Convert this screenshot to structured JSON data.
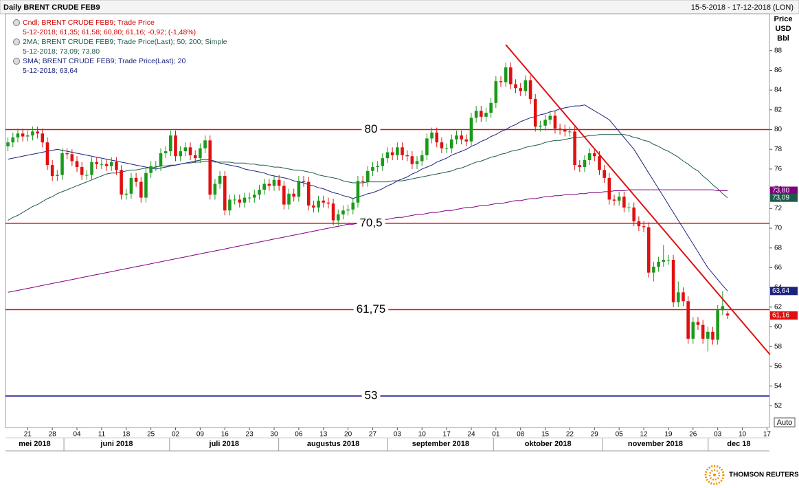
{
  "header": {
    "title": "Daily BRENT CRUDE FEB9",
    "range": "15-5-2018 - 17-12-2018 (LON)"
  },
  "footer": {
    "brand": "THOMSON REUTERS"
  },
  "controls": {
    "auto": "Auto"
  },
  "chart_data": {
    "type": "candlestick",
    "ylabel_lines": [
      "Price",
      "USD",
      "Bbl"
    ],
    "ylim": [
      49.8,
      91.6
    ],
    "yticks": [
      52,
      54,
      56,
      58,
      60,
      62,
      64,
      66,
      68,
      70,
      72,
      74,
      76,
      78,
      80,
      82,
      84,
      86,
      88
    ],
    "up_color": "#1a9a1a",
    "down_color": "#e01010",
    "legend": [
      {
        "title": "Cndl; BRENT CRUDE FEB9; Trade Price",
        "detail": "5-12-2018; 61,35; 61,58; 60,80; 61,16; -0,92; (-1,48%)",
        "color": "#d00000"
      },
      {
        "title": "2MA; BRENT CRUDE FEB9; Trade Price(Last);  50; 200; Simple",
        "detail": "5-12-2018; 73,09; 73,80",
        "color": "#1d5a4a"
      },
      {
        "title": "SMA; BRENT CRUDE FEB9; Trade Price(Last);  20",
        "detail": "5-12-2018; 63,64",
        "color": "#1a237e"
      }
    ],
    "months": [
      "mei 2018",
      "juni 2018",
      "juli 2018",
      "augustus 2018",
      "september 2018",
      "oktober 2018",
      "november 2018",
      "dec 18"
    ],
    "categories": [
      null,
      null,
      null,
      null,
      "21",
      null,
      null,
      null,
      null,
      "28",
      null,
      null,
      null,
      null,
      "04",
      null,
      null,
      null,
      null,
      "11",
      null,
      null,
      null,
      null,
      "18",
      null,
      null,
      null,
      null,
      "25",
      null,
      null,
      null,
      null,
      "02",
      null,
      null,
      null,
      null,
      "09",
      null,
      null,
      null,
      null,
      "16",
      null,
      null,
      null,
      null,
      "23",
      null,
      null,
      null,
      null,
      "30",
      null,
      null,
      null,
      null,
      "06",
      null,
      null,
      null,
      null,
      "13",
      null,
      null,
      null,
      null,
      "20",
      null,
      null,
      null,
      null,
      "27",
      null,
      null,
      null,
      null,
      "03",
      null,
      null,
      null,
      null,
      "10",
      null,
      null,
      null,
      null,
      "17",
      null,
      null,
      null,
      null,
      "24",
      null,
      null,
      null,
      null,
      "01",
      null,
      null,
      null,
      null,
      "08",
      null,
      null,
      null,
      null,
      "15",
      null,
      null,
      null,
      null,
      "22",
      null,
      null,
      null,
      null,
      "29",
      null,
      null,
      null,
      null,
      "05",
      null,
      null,
      null,
      null,
      "12",
      null,
      null,
      null,
      null,
      "19",
      null,
      null,
      null,
      null,
      "26",
      null,
      null,
      null,
      null,
      "03",
      null,
      null,
      null,
      null,
      "10",
      null,
      null,
      null,
      null,
      "17"
    ],
    "open": [
      78.3,
      78.7,
      79.2,
      79.6,
      79.3,
      79.4,
      79.8,
      79.6,
      78.7,
      76.4,
      75.3,
      75.4,
      77.6,
      77.5,
      76.8,
      76.2,
      75.4,
      75.4,
      76.7,
      76.5,
      76.5,
      76.3,
      76.7,
      75.9,
      73.4,
      73.5,
      75.1,
      74.7,
      73.1,
      75.6,
      76.3,
      76.3,
      77.6,
      77.8,
      79.4,
      77.3,
      77.8,
      78.2,
      77.4,
      77.1,
      78.1,
      78.9,
      73.4,
      74.5,
      75.3,
      71.8,
      72.9,
      72.9,
      72.6,
      73.1,
      73.1,
      73.4,
      73.9,
      74.5,
      74.3,
      74.9,
      74.3,
      72.4,
      73.5,
      73.2,
      74.8,
      74.7,
      72.3,
      72.1,
      72.8,
      72.6,
      72.5,
      70.8,
      71.4,
      71.8,
      71.9,
      72.6,
      74.8,
      74.7,
      75.8,
      76.2,
      76.3,
      77.1,
      77.7,
      77.4,
      78.2,
      77.4,
      77.3,
      76.5,
      76.8,
      77.4,
      79.1,
      79.7,
      78.7,
      78.1,
      78.1,
      79.0,
      79.4,
      79.0,
      78.8,
      81.2,
      81.9,
      81.3,
      81.7,
      82.7,
      84.9,
      84.8,
      86.3,
      84.6,
      84.2,
      83.9,
      85.0,
      83.1,
      80.3,
      80.4,
      81.0,
      81.4,
      80.1,
      80.0,
      79.8,
      79.8,
      76.4,
      76.2,
      76.9,
      77.6,
      77.3,
      75.9,
      75.1,
      72.9,
      72.8,
      73.2,
      72.1,
      72.1,
      70.7,
      70.2,
      70.1,
      65.5,
      66.1,
      66.6,
      66.8,
      66.8,
      62.5,
      63.5,
      62.6,
      58.8,
      60.5,
      60.2,
      58.8,
      59.5,
      58.7,
      61.7,
      61.35,
      null,
      null,
      null,
      null,
      null,
      null,
      null,
      null
    ],
    "high": [
      79.2,
      79.7,
      80.1,
      80.1,
      79.9,
      80.3,
      80.3,
      80.1,
      79.2,
      76.9,
      75.9,
      78.1,
      78.1,
      78.0,
      77.3,
      76.7,
      75.9,
      77.2,
      77.2,
      77.0,
      77.0,
      77.2,
      77.2,
      76.4,
      74.0,
      75.6,
      75.6,
      75.2,
      76.1,
      76.8,
      76.8,
      78.1,
      78.3,
      79.9,
      79.9,
      78.3,
      78.7,
      78.7,
      77.9,
      78.6,
      79.4,
      79.4,
      75.0,
      75.8,
      75.8,
      73.4,
      73.4,
      73.4,
      73.6,
      73.6,
      73.9,
      74.4,
      75.0,
      75.0,
      75.4,
      75.4,
      74.8,
      74.0,
      74.0,
      75.3,
      75.3,
      75.2,
      72.8,
      73.3,
      73.3,
      73.1,
      73.0,
      71.9,
      72.3,
      72.4,
      73.1,
      75.3,
      75.3,
      76.3,
      76.7,
      76.8,
      77.6,
      78.2,
      78.2,
      78.7,
      78.7,
      77.9,
      77.8,
      77.3,
      77.9,
      79.6,
      80.2,
      80.2,
      79.2,
      78.6,
      79.5,
      79.9,
      79.9,
      79.5,
      81.7,
      82.4,
      82.4,
      82.2,
      83.2,
      85.4,
      85.4,
      86.8,
      86.8,
      85.1,
      84.7,
      85.5,
      85.5,
      83.6,
      80.9,
      81.5,
      81.9,
      81.9,
      80.6,
      80.5,
      80.3,
      80.3,
      76.9,
      77.4,
      78.1,
      78.1,
      77.8,
      76.4,
      75.6,
      73.4,
      73.7,
      73.7,
      72.6,
      72.6,
      71.2,
      70.7,
      70.6,
      66.6,
      67.1,
      68.3,
      67.3,
      67.3,
      64.6,
      64.0,
      63.1,
      61.0,
      61.0,
      60.7,
      60.0,
      60.0,
      62.2,
      63.6,
      61.58,
      null,
      null,
      null,
      null,
      null,
      null,
      null,
      null
    ],
    "low": [
      77.8,
      78.2,
      78.7,
      78.8,
      78.8,
      78.9,
      79.1,
      78.2,
      75.9,
      74.8,
      74.8,
      74.9,
      77.0,
      76.3,
      75.7,
      74.9,
      74.9,
      74.9,
      76.0,
      76.0,
      75.8,
      75.8,
      75.4,
      72.9,
      72.9,
      73.0,
      74.2,
      72.6,
      72.6,
      75.1,
      75.8,
      75.8,
      77.1,
      77.3,
      76.8,
      76.8,
      77.3,
      76.9,
      76.6,
      76.6,
      77.6,
      72.9,
      72.9,
      74.0,
      71.3,
      71.3,
      72.4,
      72.1,
      72.1,
      72.6,
      72.6,
      72.9,
      73.4,
      73.8,
      73.8,
      73.8,
      71.9,
      71.9,
      72.7,
      72.7,
      74.2,
      71.8,
      71.6,
      71.6,
      72.1,
      72.0,
      70.3,
      70.3,
      70.9,
      71.3,
      71.4,
      72.1,
      74.2,
      74.2,
      75.3,
      75.7,
      75.8,
      76.6,
      76.9,
      76.9,
      76.9,
      76.8,
      76.0,
      76.0,
      76.3,
      76.9,
      78.6,
      78.2,
      77.6,
      77.6,
      77.6,
      78.5,
      78.5,
      78.3,
      78.3,
      80.7,
      80.8,
      80.8,
      81.2,
      82.2,
      84.3,
      84.3,
      84.1,
      83.7,
      83.4,
      83.4,
      82.6,
      79.8,
      79.8,
      79.9,
      80.5,
      79.6,
      79.5,
      79.3,
      79.3,
      75.9,
      75.7,
      75.7,
      76.4,
      76.8,
      75.4,
      74.6,
      72.4,
      72.3,
      72.3,
      71.6,
      71.6,
      70.2,
      69.7,
      69.6,
      65.0,
      64.6,
      65.6,
      66.1,
      66.3,
      62.0,
      62.0,
      62.1,
      58.3,
      58.3,
      59.7,
      58.3,
      57.5,
      58.2,
      58.2,
      61.2,
      60.8,
      null,
      null,
      null,
      null,
      null,
      null,
      null,
      null
    ],
    "close": [
      78.7,
      79.2,
      79.6,
      79.3,
      79.4,
      79.8,
      79.6,
      78.7,
      76.4,
      75.3,
      75.4,
      77.6,
      77.5,
      76.8,
      76.2,
      75.4,
      75.4,
      76.7,
      76.5,
      76.5,
      76.3,
      76.7,
      75.9,
      73.4,
      73.5,
      75.1,
      74.7,
      73.1,
      75.6,
      76.3,
      76.3,
      77.6,
      77.8,
      79.4,
      77.3,
      77.8,
      78.2,
      77.4,
      77.1,
      78.1,
      78.9,
      73.4,
      74.5,
      75.3,
      71.8,
      72.9,
      72.9,
      72.6,
      73.1,
      73.1,
      73.4,
      73.9,
      74.5,
      74.3,
      74.9,
      74.3,
      72.4,
      73.5,
      73.2,
      74.8,
      74.7,
      72.3,
      72.1,
      72.8,
      72.6,
      72.5,
      70.8,
      71.4,
      71.8,
      71.9,
      72.6,
      74.8,
      74.7,
      75.8,
      76.2,
      76.3,
      77.1,
      77.7,
      77.4,
      78.2,
      77.4,
      77.3,
      76.5,
      76.8,
      77.4,
      79.1,
      79.7,
      78.7,
      78.1,
      78.1,
      79.0,
      79.4,
      79.0,
      78.8,
      81.2,
      81.9,
      81.3,
      81.7,
      82.7,
      84.9,
      84.8,
      86.3,
      84.6,
      84.2,
      83.9,
      85.0,
      83.1,
      80.3,
      80.4,
      81.0,
      81.4,
      80.1,
      80.0,
      79.8,
      79.8,
      76.4,
      76.2,
      76.9,
      77.6,
      77.3,
      75.9,
      75.1,
      72.9,
      72.8,
      73.2,
      72.1,
      72.1,
      70.7,
      70.2,
      70.1,
      65.5,
      66.1,
      66.6,
      66.8,
      66.8,
      62.5,
      63.5,
      62.6,
      58.8,
      60.5,
      60.2,
      58.8,
      59.5,
      58.7,
      61.7,
      62.1,
      61.16,
      null,
      null,
      null,
      null,
      null,
      null,
      null,
      null
    ],
    "last_label": "61,16",
    "series": [
      {
        "color": "#800080",
        "last_label": "73,80",
        "values": [
          63.5,
          63.6,
          63.7,
          63.8,
          63.9,
          64.0,
          64.1,
          64.2,
          64.3,
          64.4,
          64.5,
          64.6,
          64.7,
          64.8,
          64.9,
          65.0,
          65.1,
          65.2,
          65.3,
          65.4,
          65.5,
          65.6,
          65.7,
          65.8,
          65.9,
          66.0,
          66.1,
          66.2,
          66.3,
          66.4,
          66.5,
          66.6,
          66.7,
          66.8,
          66.9,
          67.0,
          67.1,
          67.2,
          67.3,
          67.4,
          67.5,
          67.6,
          67.7,
          67.8,
          67.9,
          68.0,
          68.1,
          68.2,
          68.3,
          68.4,
          68.5,
          68.6,
          68.7,
          68.8,
          68.9,
          69.0,
          69.1,
          69.2,
          69.3,
          69.4,
          69.5,
          69.6,
          69.7,
          69.8,
          69.9,
          70.0,
          70.1,
          70.2,
          70.3,
          70.4,
          70.4,
          70.5,
          70.6,
          70.7,
          70.7,
          70.8,
          70.9,
          70.9,
          71.0,
          71.1,
          71.1,
          71.2,
          71.3,
          71.4,
          71.4,
          71.5,
          71.6,
          71.6,
          71.7,
          71.8,
          71.8,
          71.9,
          72.0,
          72.1,
          72.1,
          72.2,
          72.3,
          72.3,
          72.4,
          72.5,
          72.5,
          72.6,
          72.7,
          72.8,
          72.8,
          72.9,
          73.0,
          73.0,
          73.1,
          73.2,
          73.2,
          73.3,
          73.3,
          73.4,
          73.4,
          73.4,
          73.5,
          73.5,
          73.6,
          73.6,
          73.6,
          73.7,
          73.7,
          73.8,
          73.8,
          73.8,
          73.9,
          73.9,
          73.9,
          73.9,
          73.9,
          73.9,
          73.9,
          73.9,
          73.9,
          73.9,
          73.9,
          73.9,
          73.9,
          73.9,
          73.9,
          73.9,
          73.9,
          73.9,
          73.8,
          73.8,
          73.8,
          null,
          null,
          null,
          null,
          null,
          null,
          null,
          null
        ]
      },
      {
        "color": "#1d5a4a",
        "last_label": "73,09",
        "values": [
          70.8,
          71.1,
          71.3,
          71.6,
          71.9,
          72.2,
          72.4,
          72.7,
          73.0,
          73.2,
          73.5,
          73.7,
          73.9,
          74.1,
          74.3,
          74.5,
          74.7,
          74.9,
          75.1,
          75.3,
          75.5,
          75.6,
          75.6,
          75.7,
          75.8,
          75.9,
          75.9,
          76.0,
          76.1,
          76.1,
          76.2,
          76.3,
          76.3,
          76.4,
          76.4,
          76.5,
          76.6,
          76.6,
          76.7,
          76.7,
          76.8,
          76.8,
          76.7,
          76.7,
          76.7,
          76.7,
          76.6,
          76.6,
          76.6,
          76.5,
          76.5,
          76.4,
          76.4,
          76.3,
          76.2,
          76.2,
          76.1,
          76.0,
          75.9,
          75.9,
          75.8,
          75.7,
          75.6,
          75.4,
          75.3,
          75.2,
          75.1,
          75.0,
          74.8,
          74.7,
          74.6,
          74.6,
          74.6,
          74.7,
          74.7,
          74.7,
          74.7,
          74.7,
          74.8,
          74.8,
          74.8,
          74.9,
          75.0,
          75.1,
          75.2,
          75.3,
          75.4,
          75.5,
          75.6,
          75.7,
          75.8,
          76.0,
          76.1,
          76.3,
          76.5,
          76.7,
          76.8,
          77.0,
          77.2,
          77.3,
          77.5,
          77.6,
          77.8,
          77.9,
          78.0,
          78.2,
          78.3,
          78.4,
          78.5,
          78.7,
          78.8,
          78.9,
          78.9,
          79.0,
          79.1,
          79.2,
          79.2,
          79.3,
          79.4,
          79.4,
          79.5,
          79.5,
          79.5,
          79.5,
          79.5,
          79.5,
          79.4,
          79.2,
          79.1,
          78.9,
          78.8,
          78.5,
          78.3,
          78.0,
          77.8,
          77.5,
          77.2,
          76.8,
          76.5,
          76.1,
          75.8,
          75.3,
          74.9,
          74.4,
          74.0,
          73.5,
          73.09,
          null,
          null,
          null,
          null,
          null,
          null,
          null,
          null
        ]
      },
      {
        "color": "#1a237e",
        "last_label": "63,64",
        "values": [
          77.0,
          77.1,
          77.2,
          77.3,
          77.4,
          77.5,
          77.6,
          77.7,
          77.8,
          77.9,
          78.0,
          77.9,
          77.8,
          77.7,
          77.6,
          77.5,
          77.4,
          77.3,
          77.2,
          77.1,
          77.0,
          76.9,
          76.8,
          76.7,
          76.6,
          76.5,
          76.4,
          76.3,
          76.2,
          76.1,
          76.0,
          76.1,
          76.2,
          76.3,
          76.4,
          76.5,
          76.6,
          76.7,
          76.8,
          76.9,
          77.0,
          76.9,
          76.8,
          76.6,
          76.5,
          76.4,
          76.3,
          76.2,
          76.0,
          75.9,
          75.8,
          75.7,
          75.6,
          75.4,
          75.3,
          75.2,
          75.1,
          75.0,
          74.8,
          74.7,
          74.6,
          74.4,
          74.3,
          74.1,
          74.0,
          73.8,
          73.6,
          73.5,
          73.3,
          73.2,
          73.0,
          73.2,
          73.3,
          73.5,
          73.6,
          73.8,
          74.0,
          74.3,
          74.5,
          74.8,
          75.0,
          75.2,
          75.5,
          75.7,
          76.0,
          76.2,
          76.4,
          76.7,
          76.9,
          77.1,
          77.4,
          77.6,
          77.8,
          78.0,
          78.3,
          78.5,
          78.8,
          79.0,
          79.3,
          79.5,
          79.8,
          80.0,
          80.3,
          80.5,
          80.8,
          81.0,
          81.2,
          81.3,
          81.5,
          81.6,
          81.8,
          81.9,
          82.1,
          82.2,
          82.3,
          82.4,
          82.4,
          82.5,
          82.2,
          81.9,
          81.6,
          81.3,
          81.0,
          80.4,
          79.8,
          79.2,
          78.6,
          78.0,
          77.2,
          76.4,
          75.6,
          74.8,
          74.0,
          73.2,
          72.4,
          71.6,
          70.8,
          70.0,
          69.2,
          68.4,
          67.6,
          66.8,
          66.0,
          65.4,
          64.8,
          64.2,
          63.64,
          null,
          null,
          null,
          null,
          null,
          null,
          null,
          null
        ]
      }
    ],
    "hlines": [
      {
        "value": 80,
        "color": "#e01010"
      },
      {
        "value": 70.5,
        "label": "70,5",
        "color": "#e01010"
      },
      {
        "value": 61.75,
        "label": "61,75",
        "color": "#e01010"
      },
      {
        "value": 53,
        "color": "#000080"
      }
    ],
    "trendline": {
      "x": [
        101,
        154.6
      ],
      "values": [
        88.6,
        57.2
      ],
      "color": "#e01010"
    }
  }
}
